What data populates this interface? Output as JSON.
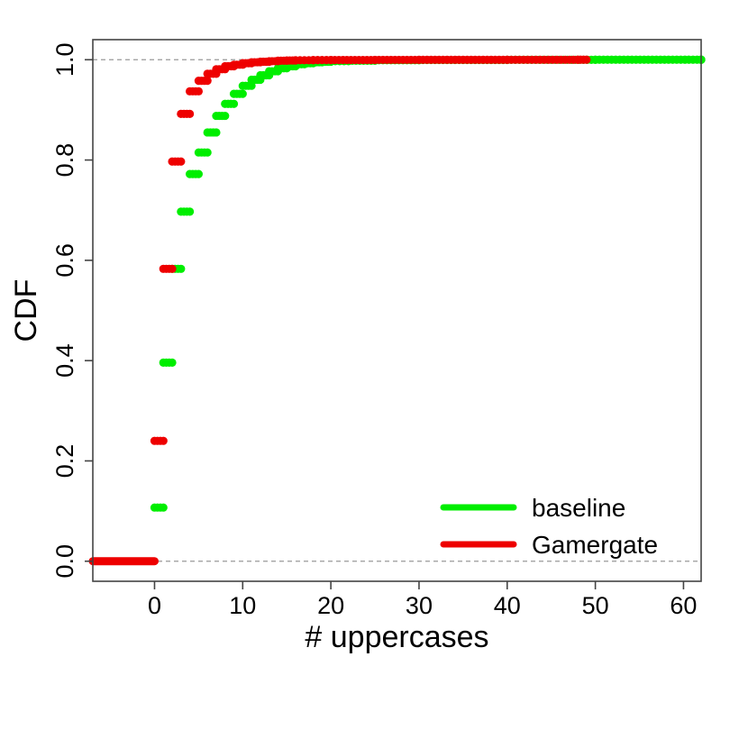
{
  "chart_data": {
    "type": "scatter",
    "title": "",
    "xlabel": "# uppercases",
    "ylabel": "CDF",
    "xlim": [
      -7,
      62
    ],
    "ylim": [
      -0.04,
      1.04
    ],
    "x_ticks": [
      0,
      10,
      20,
      30,
      40,
      50,
      60
    ],
    "x_tick_labels": [
      "0",
      "10",
      "20",
      "30",
      "40",
      "50",
      "60"
    ],
    "y_ticks": [
      0.0,
      0.2,
      0.4,
      0.6,
      0.8,
      1.0
    ],
    "y_tick_labels": [
      "0.0",
      "0.2",
      "0.4",
      "0.6",
      "0.8",
      "1.0"
    ],
    "reference_lines": [
      0.0,
      1.0
    ],
    "step_style": "ecdf step segments drawn with point markers",
    "legend_position": "bottom-right",
    "grid": false,
    "series": [
      {
        "name": "baseline",
        "color": "#00ee00",
        "x": [
          0,
          1,
          2,
          3,
          4,
          5,
          6,
          7,
          8,
          9,
          10,
          11,
          12,
          13,
          14,
          15,
          16,
          17,
          18,
          19,
          20,
          22,
          25,
          30,
          40,
          50,
          62
        ],
        "y": [
          0.107,
          0.396,
          0.583,
          0.697,
          0.772,
          0.815,
          0.855,
          0.888,
          0.912,
          0.932,
          0.948,
          0.96,
          0.969,
          0.977,
          0.983,
          0.987,
          0.991,
          0.993,
          0.995,
          0.996,
          0.997,
          0.998,
          0.999,
          0.9995,
          0.9998,
          1.0,
          1.0
        ]
      },
      {
        "name": "Gamergate",
        "color": "#ee0000",
        "x": [
          0,
          1,
          2,
          3,
          4,
          5,
          6,
          7,
          8,
          9,
          10,
          11,
          12,
          13,
          14,
          15,
          16,
          18,
          20,
          25,
          30,
          40,
          48
        ],
        "y": [
          0.24,
          0.583,
          0.797,
          0.892,
          0.937,
          0.958,
          0.972,
          0.981,
          0.987,
          0.99,
          0.993,
          0.995,
          0.996,
          0.997,
          0.998,
          0.9985,
          0.999,
          0.9993,
          0.9995,
          0.9997,
          0.9998,
          0.9999,
          1.0
        ]
      }
    ],
    "zero_segment": {
      "color": "#ee0000",
      "x_from": -7,
      "x_to": 0,
      "y": 0.0
    }
  }
}
